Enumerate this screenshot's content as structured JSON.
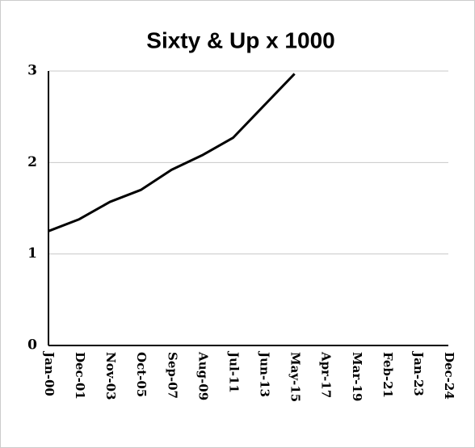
{
  "chart_data": {
    "type": "line",
    "title": "Sixty & Up x 1000",
    "categories": [
      "Jan-00",
      "Dec-01",
      "Nov-03",
      "Oct-05",
      "Sep-07",
      "Aug-09",
      "Jul-11",
      "Jun-13",
      "May-15",
      "Apr-17",
      "Mar-19",
      "Feb-21",
      "Jan-23",
      "Dec-24"
    ],
    "series": [
      {
        "name": null,
        "color": "#000000",
        "values": [
          1.25,
          1.38,
          1.57,
          1.7,
          1.92,
          2.08,
          2.27,
          2.62,
          2.97,
          null,
          null,
          null,
          null,
          null
        ]
      }
    ],
    "ylim": [
      0,
      3
    ],
    "yticks": [
      0,
      1,
      2,
      3
    ],
    "grid": true
  }
}
